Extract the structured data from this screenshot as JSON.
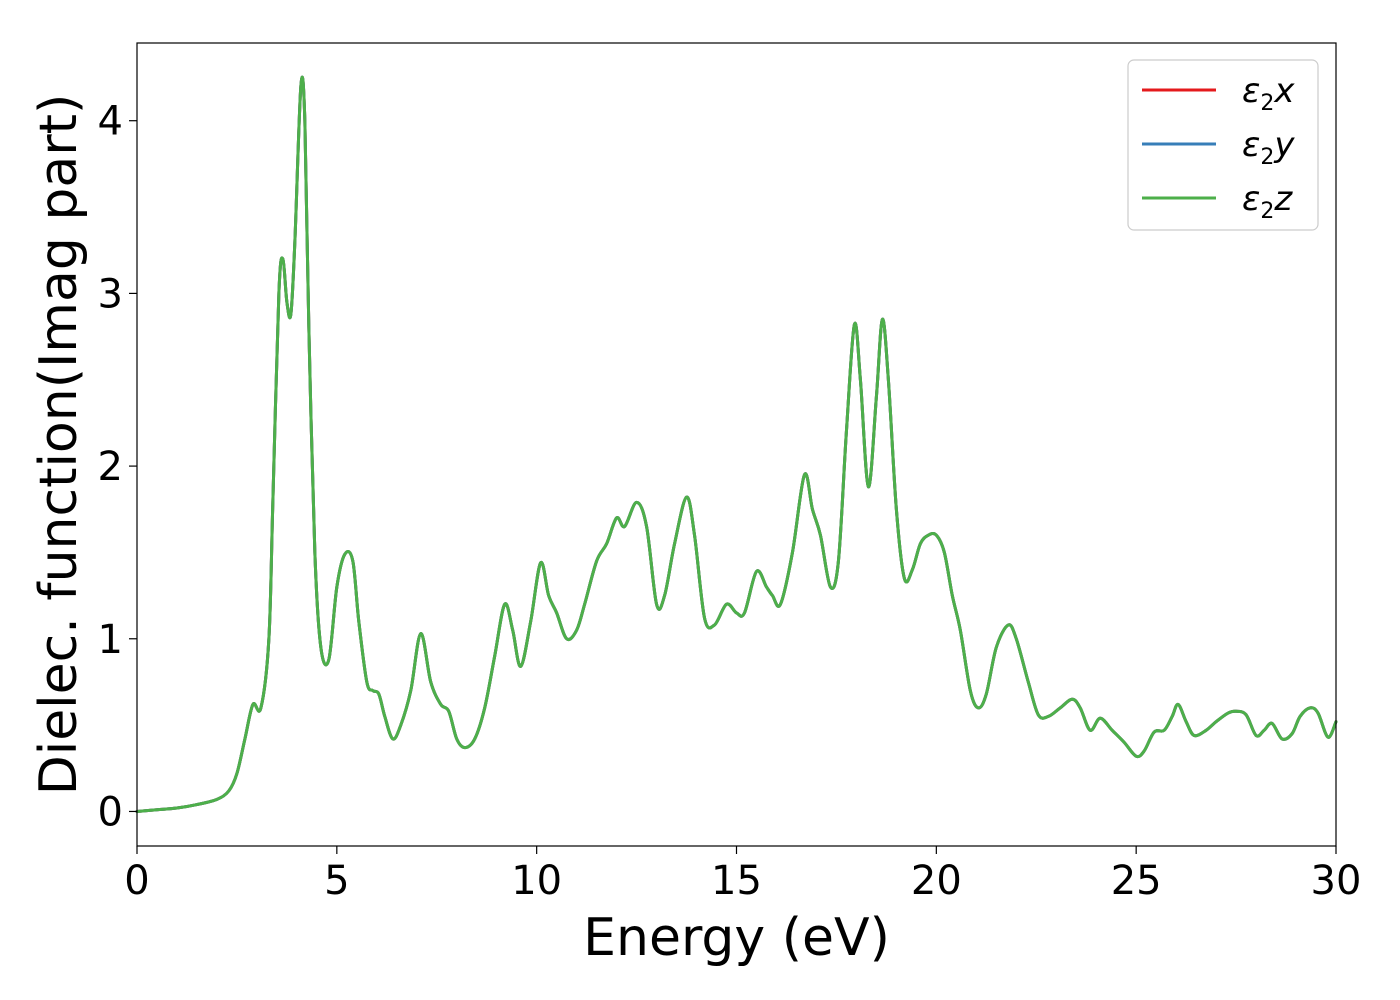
{
  "chart_data": {
    "type": "line",
    "xlabel": "Energy (eV)",
    "ylabel": "Dielec. function(Imag part)",
    "xlim": [
      0,
      30
    ],
    "ylim": [
      -0.2,
      4.45
    ],
    "xticks": [
      0,
      5,
      10,
      15,
      20,
      25,
      30
    ],
    "yticks": [
      0,
      1,
      2,
      3,
      4
    ],
    "grid": false,
    "legend_position": "top-right",
    "legend": [
      {
        "base": "ε",
        "sub": "2",
        "axis": "x",
        "color": "#e41a1c"
      },
      {
        "base": "ε",
        "sub": "2",
        "axis": "y",
        "color": "#377eb8"
      },
      {
        "base": "ε",
        "sub": "2",
        "axis": "z",
        "color": "#4daf4a"
      }
    ],
    "x": [
      0,
      0.5,
      1.0,
      1.5,
      2.0,
      2.3,
      2.5,
      2.7,
      2.9,
      3.1,
      3.3,
      3.4,
      3.55,
      3.65,
      3.75,
      3.85,
      3.95,
      4.1,
      4.2,
      4.3,
      4.45,
      4.6,
      4.8,
      5.0,
      5.2,
      5.4,
      5.55,
      5.75,
      5.9,
      6.05,
      6.2,
      6.4,
      6.6,
      6.85,
      7.1,
      7.35,
      7.6,
      7.8,
      8.0,
      8.2,
      8.45,
      8.7,
      8.95,
      9.2,
      9.4,
      9.6,
      9.85,
      10.1,
      10.3,
      10.5,
      10.75,
      11.0,
      11.2,
      11.5,
      11.75,
      12.0,
      12.2,
      12.5,
      12.75,
      13.0,
      13.2,
      13.45,
      13.75,
      13.95,
      14.2,
      14.45,
      14.75,
      15.0,
      15.2,
      15.5,
      15.75,
      15.9,
      16.1,
      16.4,
      16.7,
      16.9,
      17.1,
      17.35,
      17.55,
      17.75,
      17.95,
      18.1,
      18.3,
      18.5,
      18.65,
      18.8,
      19.0,
      19.2,
      19.4,
      19.6,
      19.8,
      20.0,
      20.2,
      20.4,
      20.6,
      20.85,
      21.05,
      21.25,
      21.5,
      21.8,
      22.0,
      22.3,
      22.55,
      22.8,
      23.1,
      23.4,
      23.6,
      23.85,
      24.1,
      24.4,
      24.7,
      25.0,
      25.2,
      25.45,
      25.7,
      25.9,
      26.05,
      26.25,
      26.45,
      26.75,
      27.0,
      27.3,
      27.5,
      27.75,
      28.0,
      28.2,
      28.4,
      28.65,
      28.9,
      29.1,
      29.35,
      29.55,
      29.8,
      30.0
    ],
    "series": [
      {
        "name": "ε₂x",
        "color": "#e41a1c",
        "values": [
          0.0,
          0.01,
          0.02,
          0.04,
          0.07,
          0.12,
          0.22,
          0.42,
          0.62,
          0.6,
          1.0,
          1.8,
          3.0,
          3.2,
          2.95,
          2.88,
          3.3,
          4.2,
          4.0,
          2.8,
          1.5,
          0.95,
          0.88,
          1.3,
          1.49,
          1.45,
          1.1,
          0.75,
          0.7,
          0.68,
          0.55,
          0.42,
          0.5,
          0.7,
          1.03,
          0.75,
          0.62,
          0.58,
          0.42,
          0.37,
          0.42,
          0.6,
          0.9,
          1.2,
          1.05,
          0.84,
          1.1,
          1.44,
          1.25,
          1.15,
          1.0,
          1.05,
          1.2,
          1.45,
          1.55,
          1.7,
          1.65,
          1.79,
          1.65,
          1.2,
          1.25,
          1.55,
          1.82,
          1.6,
          1.12,
          1.08,
          1.2,
          1.15,
          1.15,
          1.39,
          1.3,
          1.25,
          1.2,
          1.5,
          1.95,
          1.75,
          1.6,
          1.3,
          1.45,
          2.2,
          2.82,
          2.5,
          1.88,
          2.4,
          2.85,
          2.5,
          1.75,
          1.35,
          1.4,
          1.55,
          1.6,
          1.6,
          1.5,
          1.25,
          1.05,
          0.7,
          0.6,
          0.68,
          0.95,
          1.08,
          1.0,
          0.75,
          0.56,
          0.55,
          0.6,
          0.65,
          0.6,
          0.47,
          0.54,
          0.47,
          0.4,
          0.32,
          0.35,
          0.46,
          0.47,
          0.55,
          0.62,
          0.52,
          0.44,
          0.47,
          0.52,
          0.57,
          0.58,
          0.56,
          0.44,
          0.47,
          0.51,
          0.42,
          0.45,
          0.55,
          0.6,
          0.57,
          0.43,
          0.52
        ]
      },
      {
        "name": "ε₂y",
        "color": "#377eb8",
        "values": [
          0.0,
          0.01,
          0.02,
          0.04,
          0.07,
          0.12,
          0.22,
          0.42,
          0.62,
          0.6,
          1.0,
          1.8,
          3.0,
          3.2,
          2.95,
          2.88,
          3.3,
          4.2,
          4.0,
          2.8,
          1.5,
          0.95,
          0.88,
          1.3,
          1.49,
          1.45,
          1.1,
          0.75,
          0.7,
          0.68,
          0.55,
          0.42,
          0.5,
          0.7,
          1.03,
          0.75,
          0.62,
          0.58,
          0.42,
          0.37,
          0.42,
          0.6,
          0.9,
          1.2,
          1.05,
          0.84,
          1.1,
          1.44,
          1.25,
          1.15,
          1.0,
          1.05,
          1.2,
          1.45,
          1.55,
          1.7,
          1.65,
          1.79,
          1.65,
          1.2,
          1.25,
          1.55,
          1.82,
          1.6,
          1.12,
          1.08,
          1.2,
          1.15,
          1.15,
          1.39,
          1.3,
          1.25,
          1.2,
          1.5,
          1.95,
          1.75,
          1.6,
          1.3,
          1.45,
          2.2,
          2.82,
          2.5,
          1.88,
          2.4,
          2.85,
          2.5,
          1.75,
          1.35,
          1.4,
          1.55,
          1.6,
          1.6,
          1.5,
          1.25,
          1.05,
          0.7,
          0.6,
          0.68,
          0.95,
          1.08,
          1.0,
          0.75,
          0.56,
          0.55,
          0.6,
          0.65,
          0.6,
          0.47,
          0.54,
          0.47,
          0.4,
          0.32,
          0.35,
          0.46,
          0.47,
          0.55,
          0.62,
          0.52,
          0.44,
          0.47,
          0.52,
          0.57,
          0.58,
          0.56,
          0.44,
          0.47,
          0.51,
          0.42,
          0.45,
          0.55,
          0.6,
          0.57,
          0.43,
          0.52
        ]
      },
      {
        "name": "ε₂z",
        "color": "#4daf4a",
        "values": [
          0.0,
          0.01,
          0.02,
          0.04,
          0.07,
          0.12,
          0.22,
          0.42,
          0.62,
          0.6,
          1.0,
          1.8,
          3.0,
          3.2,
          2.95,
          2.88,
          3.3,
          4.2,
          4.0,
          2.8,
          1.5,
          0.95,
          0.88,
          1.3,
          1.49,
          1.45,
          1.1,
          0.75,
          0.7,
          0.68,
          0.55,
          0.42,
          0.5,
          0.7,
          1.03,
          0.75,
          0.62,
          0.58,
          0.42,
          0.37,
          0.42,
          0.6,
          0.9,
          1.2,
          1.05,
          0.84,
          1.1,
          1.44,
          1.25,
          1.15,
          1.0,
          1.05,
          1.2,
          1.45,
          1.55,
          1.7,
          1.65,
          1.79,
          1.65,
          1.2,
          1.25,
          1.55,
          1.82,
          1.6,
          1.12,
          1.08,
          1.2,
          1.15,
          1.15,
          1.39,
          1.3,
          1.25,
          1.2,
          1.5,
          1.95,
          1.75,
          1.6,
          1.3,
          1.45,
          2.2,
          2.82,
          2.5,
          1.88,
          2.4,
          2.85,
          2.5,
          1.75,
          1.35,
          1.4,
          1.55,
          1.6,
          1.6,
          1.5,
          1.25,
          1.05,
          0.7,
          0.6,
          0.68,
          0.95,
          1.08,
          1.0,
          0.75,
          0.56,
          0.55,
          0.6,
          0.65,
          0.6,
          0.47,
          0.54,
          0.47,
          0.4,
          0.32,
          0.35,
          0.46,
          0.47,
          0.55,
          0.62,
          0.52,
          0.44,
          0.47,
          0.52,
          0.57,
          0.58,
          0.56,
          0.44,
          0.47,
          0.51,
          0.42,
          0.45,
          0.55,
          0.6,
          0.57,
          0.43,
          0.52
        ]
      }
    ]
  }
}
